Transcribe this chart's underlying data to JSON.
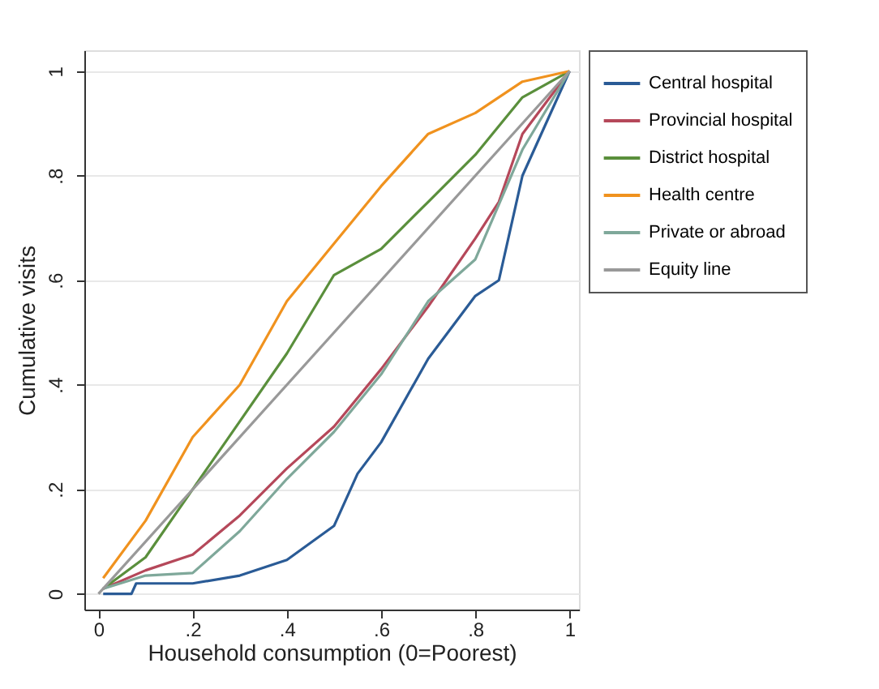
{
  "chart_data": {
    "type": "line",
    "xlabel": "Household consumption (0=Poorest)",
    "ylabel": "Cumulative visits",
    "x": [
      0.01,
      0.1,
      0.2,
      0.3,
      0.4,
      0.5,
      0.6,
      0.7,
      0.8,
      0.9,
      1
    ],
    "series": [
      {
        "name": "Central hospital",
        "color": "#2a5b96",
        "x": [
          0.01,
          0.07,
          0.08,
          0.2,
          0.3,
          0.4,
          0.5,
          0.55,
          0.6,
          0.7,
          0.8,
          0.85,
          0.9,
          0.95,
          1
        ],
        "values": [
          0,
          0,
          0.02,
          0.02,
          0.035,
          0.065,
          0.13,
          0.23,
          0.29,
          0.45,
          0.57,
          0.6,
          0.8,
          0.9,
          1
        ]
      },
      {
        "name": "Provincial hospital",
        "color": "#b5485a",
        "x": [
          0.01,
          0.1,
          0.2,
          0.3,
          0.4,
          0.5,
          0.6,
          0.7,
          0.8,
          0.85,
          0.9,
          1
        ],
        "values": [
          0.01,
          0.045,
          0.075,
          0.15,
          0.24,
          0.32,
          0.43,
          0.55,
          0.68,
          0.75,
          0.88,
          1
        ]
      },
      {
        "name": "District hospital",
        "color": "#5a8f3c",
        "values": [
          0.01,
          0.07,
          0.2,
          0.33,
          0.46,
          0.61,
          0.66,
          0.75,
          0.84,
          0.95,
          1
        ]
      },
      {
        "name": "Health centre",
        "color": "#f0921e",
        "values": [
          0.03,
          0.14,
          0.3,
          0.4,
          0.56,
          0.67,
          0.78,
          0.88,
          0.92,
          0.98,
          1
        ]
      },
      {
        "name": "Private or abroad",
        "color": "#7fa89a",
        "values": [
          0.01,
          0.035,
          0.04,
          0.12,
          0.22,
          0.31,
          0.42,
          0.56,
          0.64,
          0.85,
          1
        ]
      },
      {
        "name": "Equity line",
        "color": "#999999",
        "x": [
          0,
          1
        ],
        "values": [
          0,
          1
        ]
      }
    ],
    "xlim": [
      -0.03,
      1.02
    ],
    "ylim": [
      -0.03,
      1.04
    ],
    "xticks": [
      0,
      {
        "value": 0.2,
        "label": ".2"
      },
      {
        "value": 0.4,
        "label": ".4"
      },
      {
        "value": 0.6,
        "label": ".6"
      },
      {
        "value": 0.8,
        "label": ".8"
      },
      1
    ],
    "yticks": [
      0,
      {
        "value": 0.2,
        "label": ".2"
      },
      {
        "value": 0.4,
        "label": ".4"
      },
      {
        "value": 0.6,
        "label": ".6"
      },
      {
        "value": 0.8,
        "label": ".8"
      },
      1
    ],
    "grid": "y",
    "legend": "right",
    "line_style": "solid",
    "marker": "none"
  }
}
